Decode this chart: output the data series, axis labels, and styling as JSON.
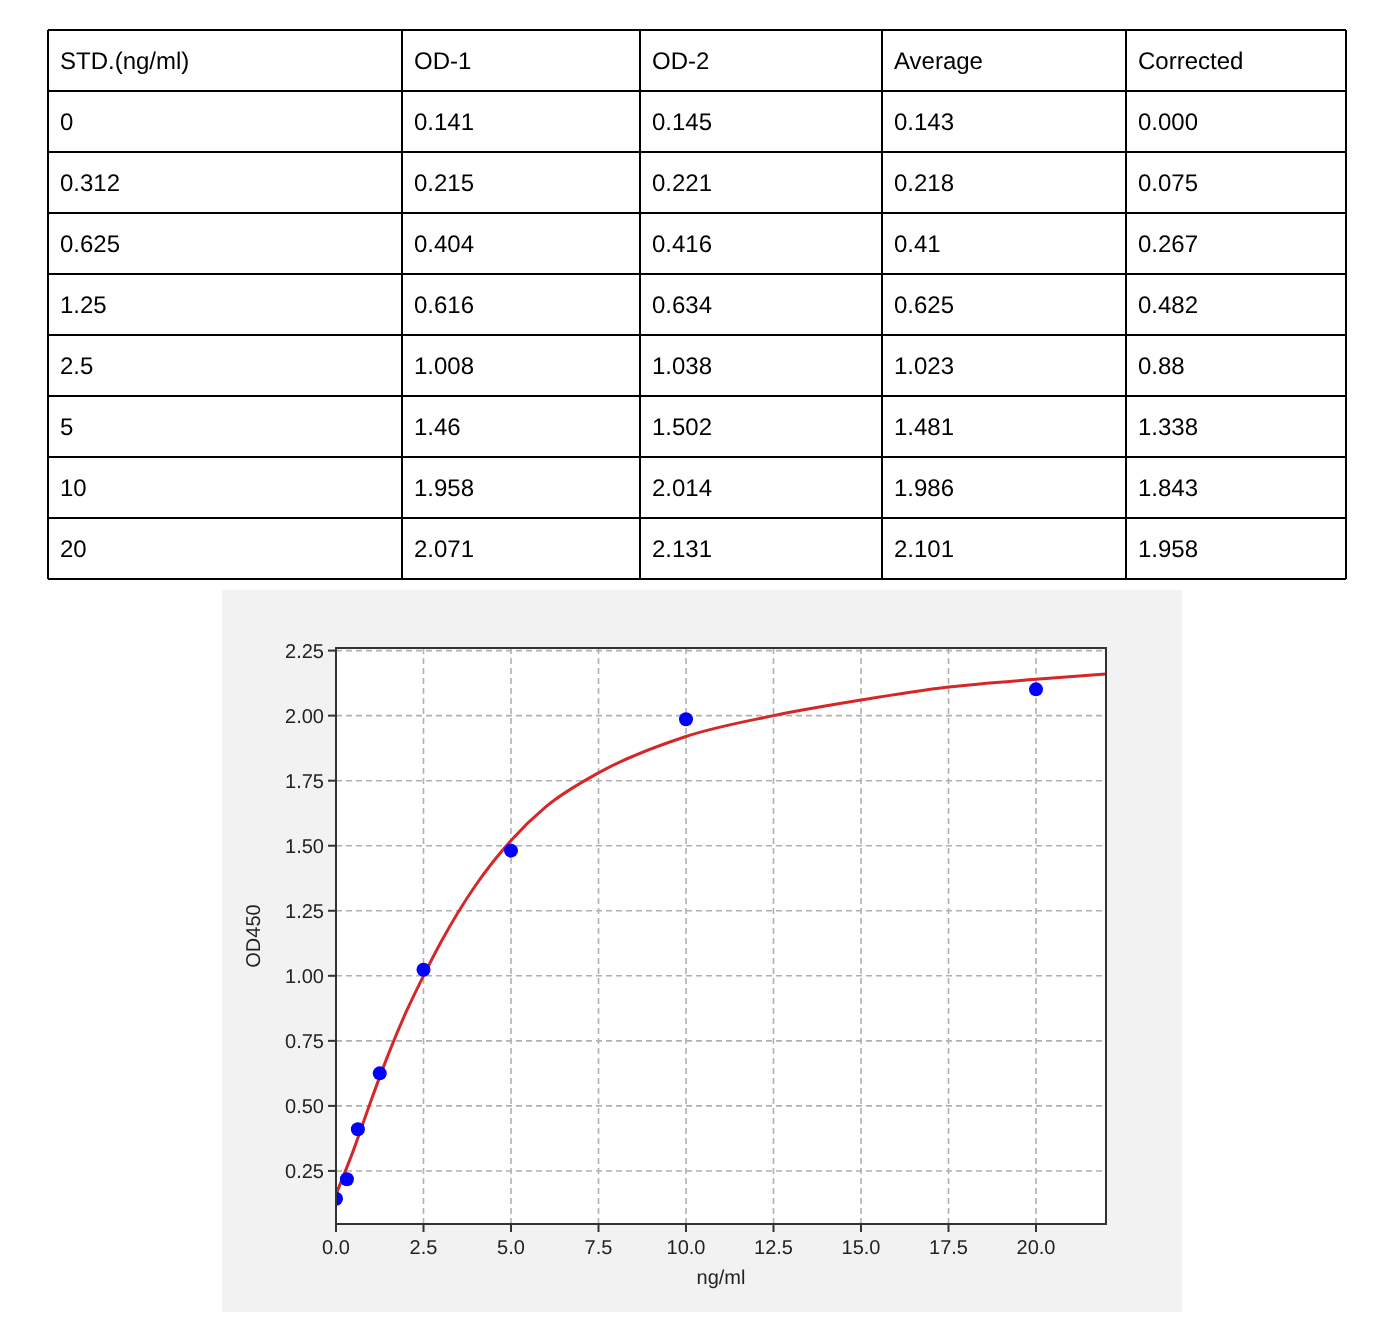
{
  "chart_data": [
    {
      "type": "other",
      "categories": [
        "STD.(ng/ml)",
        "OD-1",
        "OD-2",
        "Average",
        "Corrected"
      ],
      "cell_labels": [
        [
          "0",
          "0.141",
          "0.145",
          "0.143",
          "0.000"
        ],
        [
          "0.312",
          "0.215",
          "0.221",
          "0.218",
          "0.075"
        ],
        [
          "0.625",
          "0.404",
          "0.416",
          "0.41",
          "0.267"
        ],
        [
          "1.25",
          "0.616",
          "0.634",
          "0.625",
          "0.482"
        ],
        [
          "2.5",
          "1.008",
          "1.038",
          "1.023",
          "0.88"
        ],
        [
          "5",
          "1.46",
          "1.502",
          "1.481",
          "1.338"
        ],
        [
          "10",
          "1.958",
          "2.014",
          "1.986",
          "1.843"
        ],
        [
          "20",
          "2.071",
          "2.131",
          "2.101",
          "1.958"
        ]
      ]
    },
    {
      "type": "scatter",
      "xlabel": "ng/ml",
      "ylabel": "OD450",
      "xlim": [
        0,
        22
      ],
      "ylim": [
        0.046,
        2.26
      ],
      "xticks": [
        {
          "value": 0,
          "label": "0.0"
        },
        {
          "value": 2.5,
          "label": "2.5"
        },
        {
          "value": 5,
          "label": "5.0"
        },
        {
          "value": 7.5,
          "label": "7.5"
        },
        {
          "value": 10,
          "label": "10.0"
        },
        {
          "value": 12.5,
          "label": "12.5"
        },
        {
          "value": 15,
          "label": "15.0"
        },
        {
          "value": 17.5,
          "label": "17.5"
        },
        {
          "value": 20,
          "label": "20.0"
        }
      ],
      "yticks": [
        {
          "value": 0.25,
          "label": "0.25"
        },
        {
          "value": 0.5,
          "label": "0.50"
        },
        {
          "value": 0.75,
          "label": "0.75"
        },
        {
          "value": 1,
          "label": "1.00"
        },
        {
          "value": 1.25,
          "label": "1.25"
        },
        {
          "value": 1.5,
          "label": "1.50"
        },
        {
          "value": 1.75,
          "label": "1.75"
        },
        {
          "value": 2,
          "label": "2.00"
        },
        {
          "value": 2.25,
          "label": "2.25"
        }
      ],
      "grid": true,
      "series": [
        {
          "type": "line",
          "color": "#d62728",
          "marker": "none",
          "line_style": "solid",
          "x": [
            0,
            0.5,
            1,
            1.5,
            2,
            2.5,
            3,
            4,
            5,
            6,
            7.5,
            10,
            12.5,
            15,
            17.5,
            20,
            22
          ],
          "values": [
            0.16,
            0.33,
            0.52,
            0.7,
            0.86,
            1.0,
            1.13,
            1.35,
            1.52,
            1.65,
            1.78,
            1.92,
            2.0,
            2.06,
            2.11,
            2.14,
            2.16
          ]
        },
        {
          "type": "scatter",
          "color": "#0000ff",
          "marker": "circle",
          "x": [
            0,
            0.312,
            0.625,
            1.25,
            2.5,
            5,
            10,
            20
          ],
          "values": [
            0.143,
            0.218,
            0.41,
            0.625,
            1.023,
            1.481,
            1.986,
            2.101
          ]
        }
      ]
    }
  ]
}
